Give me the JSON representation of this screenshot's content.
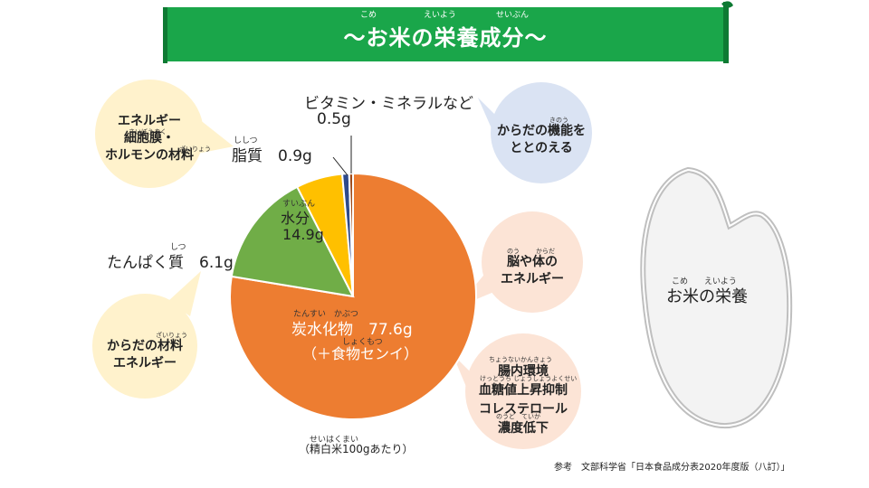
{
  "title": "～お米の栄養成分～",
  "title_ruby": [
    "こめ",
    "えいよう",
    "せいぶん"
  ],
  "chart_data": {
    "type": "pie",
    "unit": "g",
    "categories": [
      "炭水化物",
      "水分",
      "たんぱく質",
      "脂質",
      "ビタミン・ミネラルなど"
    ],
    "values": [
      77.6,
      14.9,
      6.1,
      0.9,
      0.5
    ],
    "colors": [
      "#ED7D31",
      "#70AD47",
      "#FFC000",
      "#2E4A8B",
      "#9E4A1A"
    ],
    "labels": {
      "carb_name": "炭水化物",
      "carb_value": "77.6g",
      "carb_note": "（＋食物センイ）",
      "water_name": "水分",
      "water_value": "14.9g",
      "protein": "たんぱく質　6.1g",
      "fat_name": "脂質",
      "fat_value": "0.9g",
      "vitamin_name": "ビタミン・ミネラルなど",
      "vitamin_value": "0.5g"
    },
    "ruby": {
      "carb": "たんすい　かぶつ",
      "carb_note": "しょくもつ",
      "water": "すいぶん",
      "protein": "しつ",
      "fat": "ししつ"
    },
    "basis": "（精白米100gあたり）",
    "basis_ruby": "せいはくまい"
  },
  "bubbles": {
    "fat_role": [
      "エネルギー",
      "細胞膜・",
      "ホルモンの材料"
    ],
    "vitamin_role": [
      "からだの機能を",
      "ととのえる"
    ],
    "protein_role": [
      "からだの材料",
      "エネルギー"
    ],
    "carb_role_1": [
      "脳や体の",
      "エネルギー"
    ],
    "carb_role_2": [
      "腸内環境",
      "血糖値上昇抑制",
      "コレステロール",
      "濃度低下"
    ],
    "ruby": {
      "fat_role": "さいぼうまく",
      "fat_role_2": "ざいりょう",
      "vitamin_role": "きのう",
      "protein_role": "ざいりょう",
      "carb_role_1a": "のう",
      "carb_role_1b": "からだ",
      "carb_role_2a": "ちょうないかんきょう",
      "carb_role_2b": "けっとうち じょうしょうよくせい",
      "carb_role_2c": "のうど　ていか"
    }
  },
  "rice_label": "お米の栄養",
  "rice_ruby": "こめ　　えいよう",
  "source": "参考　文部科学省「日本食品成分表2020年度版（八訂）」",
  "colors": {
    "banner": "#1AA64A",
    "bubble_orange": "#FCE4D6",
    "bubble_yellow": "#FFF2CC",
    "bubble_blue": "#DAE3F3"
  }
}
